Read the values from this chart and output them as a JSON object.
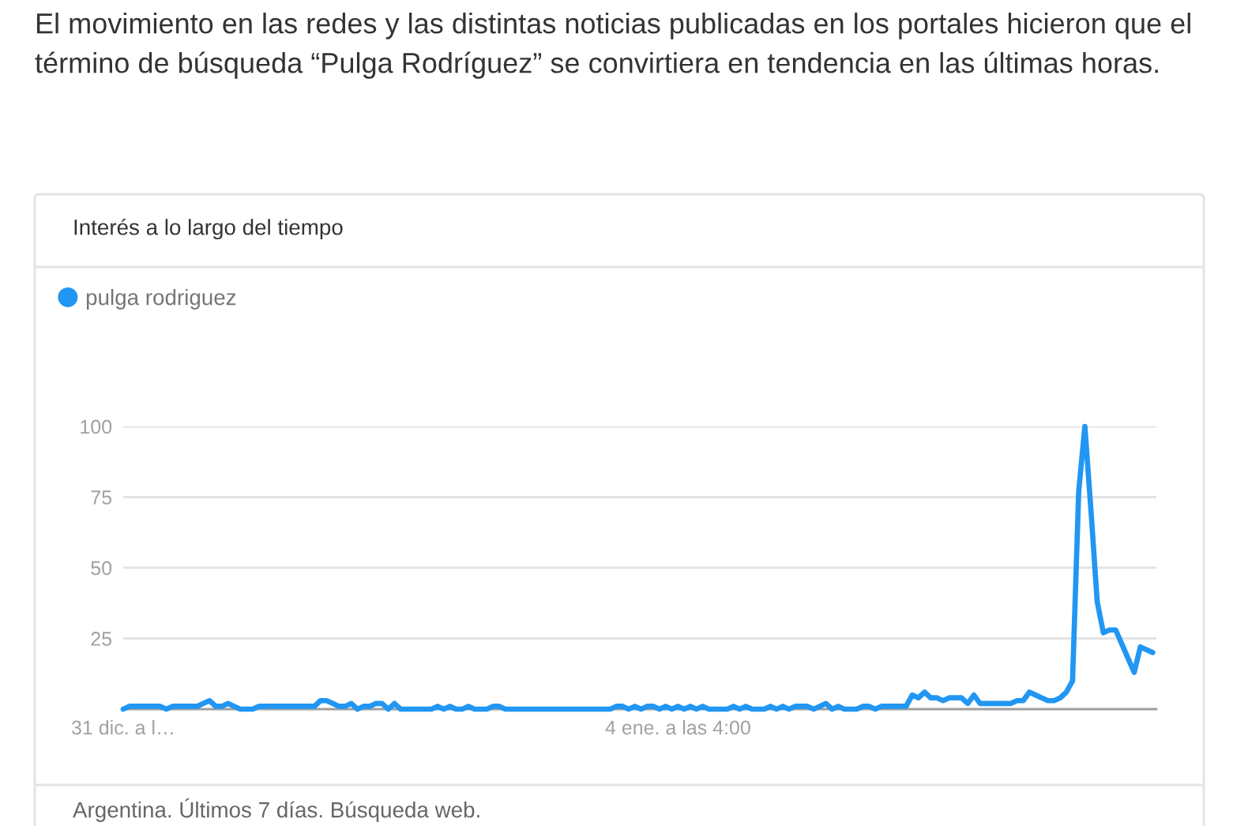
{
  "chart_data": {
    "type": "line",
    "title": "Interés a lo largo del tiempo",
    "annotations": [
      "El movimiento en las redes y las distintas noticias publicadas en los portales hicieron que el término de búsqueda “Pulga Rodríguez” se convirtiera en tendencia en las últimas horas.",
      "Argentina. Últimos 7 días. Búsqueda web."
    ],
    "categories": [
      "31 dic. a l…",
      null,
      null,
      null,
      null,
      null,
      null,
      null,
      null,
      null,
      null,
      null,
      null,
      null,
      null,
      null,
      null,
      null,
      null,
      null,
      null,
      null,
      null,
      null,
      null,
      null,
      null,
      null,
      null,
      null,
      null,
      null,
      null,
      null,
      null,
      null,
      null,
      null,
      null,
      null,
      null,
      null,
      null,
      null,
      null,
      null,
      null,
      null,
      null,
      null,
      null,
      null,
      null,
      null,
      null,
      null,
      null,
      null,
      null,
      null,
      null,
      null,
      null,
      null,
      null,
      null,
      null,
      null,
      null,
      null,
      null,
      null,
      null,
      null,
      null,
      null,
      null,
      null,
      null,
      null,
      null,
      null,
      null,
      null,
      null,
      null,
      null,
      null,
      null,
      null,
      "4 ene. a las 4:00",
      null,
      null,
      null,
      null,
      null,
      null,
      null,
      null,
      null,
      null,
      null,
      null,
      null,
      null,
      null,
      null,
      null,
      null,
      null,
      null,
      null,
      null,
      null,
      null,
      null,
      null,
      null,
      null,
      null,
      null,
      null,
      null,
      null,
      null,
      null,
      null,
      null,
      null,
      null,
      null,
      null,
      null,
      null,
      null,
      null,
      null,
      null,
      null,
      null,
      null,
      null,
      null,
      null,
      null,
      null,
      null,
      null,
      null,
      null,
      null,
      null,
      null,
      null,
      null,
      null,
      null,
      null,
      null,
      null,
      null,
      null,
      null,
      null,
      null,
      null,
      null,
      null
    ],
    "series": [
      {
        "name": "pulga rodriguez",
        "color": "#2196f3",
        "values": [
          0,
          1,
          1,
          1,
          1,
          1,
          1,
          0,
          1,
          1,
          1,
          1,
          1,
          2,
          3,
          1,
          1,
          2,
          1,
          0,
          0,
          0,
          1,
          1,
          1,
          1,
          1,
          1,
          1,
          1,
          1,
          1,
          3,
          3,
          2,
          1,
          1,
          2,
          0,
          1,
          1,
          2,
          2,
          0,
          2,
          0,
          0,
          0,
          0,
          0,
          0,
          1,
          0,
          1,
          0,
          0,
          1,
          0,
          0,
          0,
          1,
          1,
          0,
          0,
          0,
          0,
          0,
          0,
          0,
          0,
          0,
          0,
          0,
          0,
          0,
          0,
          0,
          0,
          0,
          0,
          1,
          1,
          0,
          1,
          0,
          1,
          1,
          0,
          1,
          0,
          1,
          0,
          1,
          0,
          1,
          0,
          0,
          0,
          0,
          1,
          0,
          1,
          0,
          0,
          0,
          1,
          0,
          1,
          0,
          1,
          1,
          1,
          0,
          1,
          2,
          0,
          1,
          0,
          0,
          0,
          1,
          1,
          0,
          1,
          1,
          1,
          1,
          1,
          5,
          4,
          6,
          4,
          4,
          3,
          4,
          4,
          4,
          2,
          5,
          2,
          2,
          2,
          2,
          2,
          2,
          3,
          3,
          6,
          5,
          4,
          3,
          3,
          4,
          6,
          10,
          77,
          100,
          70,
          38,
          27,
          28,
          28,
          23,
          18,
          13,
          22,
          21,
          20
        ]
      }
    ],
    "ylim": [
      0,
      100
    ],
    "yticks": [
      25,
      50,
      75,
      100
    ],
    "grid": "y",
    "legend": "top left"
  }
}
